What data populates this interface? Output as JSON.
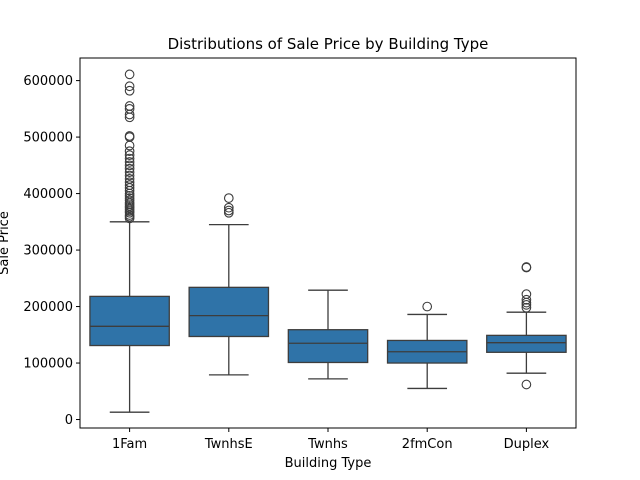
{
  "chart_data": {
    "type": "box",
    "title": "Distributions of Sale Price by Building Type",
    "xlabel": "Building Type",
    "ylabel": "Sale Price",
    "ylim": [
      -15000,
      640000
    ],
    "yticks": [
      0,
      100000,
      200000,
      300000,
      400000,
      500000,
      600000
    ],
    "ytick_labels": [
      "0",
      "100000",
      "200000",
      "300000",
      "400000",
      "500000",
      "600000"
    ],
    "grid": false,
    "box_color": "#2f73a8",
    "line_color": "#3d3d3d",
    "categories": [
      "1Fam",
      "TwnhsE",
      "Twnhs",
      "2fmCon",
      "Duplex"
    ],
    "boxes": [
      {
        "category": "1Fam",
        "whisker_low": 13000,
        "q1": 131000,
        "median": 165000,
        "q3": 218000,
        "whisker_high": 350000,
        "outliers": [
          356000,
          359000,
          362000,
          366000,
          369000,
          372000,
          375000,
          378000,
          381000,
          384000,
          388000,
          392000,
          396000,
          400000,
          405000,
          410000,
          415000,
          420000,
          426000,
          432000,
          438000,
          444000,
          450000,
          456000,
          462000,
          468000,
          475000,
          485000,
          500000,
          502000,
          535000,
          540000,
          550000,
          555000,
          582000,
          590000,
          611000
        ]
      },
      {
        "category": "TwnhsE",
        "whisker_low": 79000,
        "q1": 147000,
        "median": 184000,
        "q3": 234000,
        "whisker_high": 345000,
        "outliers": [
          366000,
          370000,
          375000,
          392000
        ]
      },
      {
        "category": "Twnhs",
        "whisker_low": 72000,
        "q1": 101000,
        "median": 135000,
        "q3": 159000,
        "whisker_high": 229000,
        "outliers": []
      },
      {
        "category": "2fmCon",
        "whisker_low": 55000,
        "q1": 100000,
        "median": 120000,
        "q3": 140000,
        "whisker_high": 186000,
        "outliers": [
          200000
        ]
      },
      {
        "category": "Duplex",
        "whisker_low": 82000,
        "q1": 119000,
        "median": 136000,
        "q3": 149000,
        "whisker_high": 190000,
        "outliers": [
          62000,
          198000,
          203000,
          207000,
          212000,
          222000,
          269000,
          270000
        ]
      }
    ]
  }
}
